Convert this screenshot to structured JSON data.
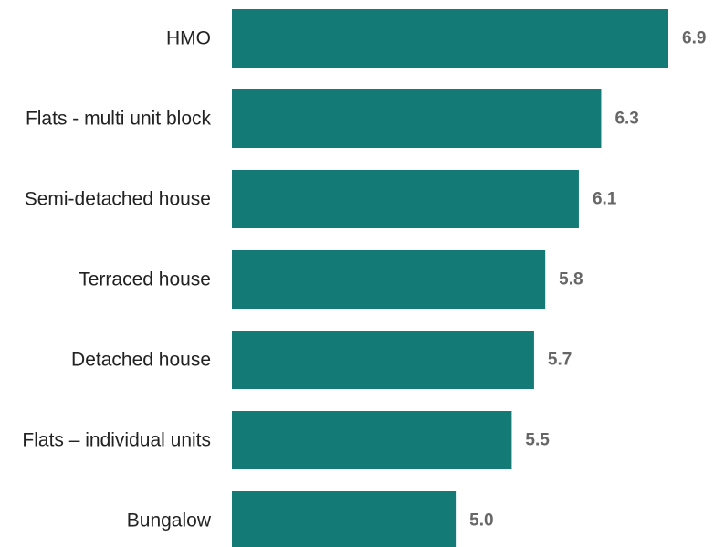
{
  "chart_data": {
    "type": "bar",
    "orientation": "horizontal",
    "categories": [
      "HMO",
      "Flats - multi unit block",
      "Semi-detached house",
      "Terraced house",
      "Detached house",
      "Flats – individual units",
      "Bungalow"
    ],
    "values": [
      6.9,
      6.3,
      6.1,
      5.8,
      5.7,
      5.5,
      5.0
    ],
    "value_labels": [
      "6.9",
      "6.3",
      "6.1",
      "5.8",
      "5.7",
      "5.5",
      "5.0"
    ],
    "title": "",
    "xlabel": "",
    "ylabel": "",
    "xlim": [
      3.0,
      6.9
    ],
    "grid": false,
    "legend": "none",
    "colors": {
      "bar": "#147a76",
      "category_text": "#222222",
      "value_text": "#666666"
    }
  }
}
